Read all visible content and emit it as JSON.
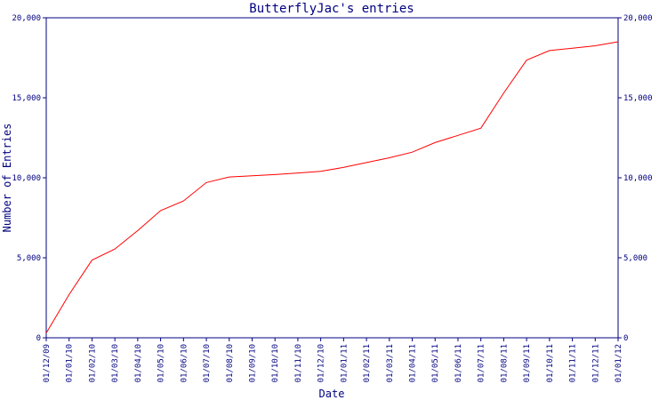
{
  "chart_data": {
    "type": "line",
    "title": "ButterflyJac's entries",
    "xlabel": "Date",
    "ylabel": "Number of Entries",
    "grid": false,
    "ylim": [
      0,
      20000
    ],
    "y_ticks": [
      0,
      5000,
      10000,
      15000,
      20000
    ],
    "y_tick_labels": [
      "0",
      "5,000",
      "10,000",
      "15,000",
      "20,000"
    ],
    "x_tick_labels": [
      "01/12/09",
      "01/01/10",
      "01/02/10",
      "01/03/10",
      "01/04/10",
      "01/05/10",
      "01/06/10",
      "01/07/10",
      "01/08/10",
      "01/09/10",
      "01/10/10",
      "01/11/10",
      "01/12/10",
      "01/01/11",
      "01/02/11",
      "01/03/11",
      "01/04/11",
      "01/05/11",
      "01/06/11",
      "01/07/11",
      "01/08/11",
      "01/09/11",
      "01/10/11",
      "01/11/11",
      "01/12/11",
      "01/01/12"
    ],
    "series_color": "#ff0000",
    "series": [
      {
        "x": [
          "01/12/09",
          "01/01/10",
          "01/02/10",
          "01/03/10",
          "01/04/10",
          "01/05/10",
          "01/06/10",
          "01/07/10",
          "01/08/10",
          "01/09/10",
          "01/10/10",
          "01/11/10",
          "01/12/10",
          "01/01/11",
          "01/02/11",
          "01/03/11",
          "01/04/11",
          "01/05/11",
          "01/06/11",
          "01/07/11",
          "01/08/11",
          "01/09/11",
          "01/10/11",
          "01/11/11",
          "01/12/11",
          "01/01/12"
        ],
        "values": [
          300,
          2700,
          4850,
          5550,
          6700,
          7950,
          8550,
          9700,
          10050,
          10120,
          10200,
          10300,
          10400,
          10650,
          10950,
          11250,
          11600,
          12200,
          12650,
          13100,
          15300,
          17350,
          17950,
          18100,
          18250,
          18500
        ]
      }
    ]
  }
}
